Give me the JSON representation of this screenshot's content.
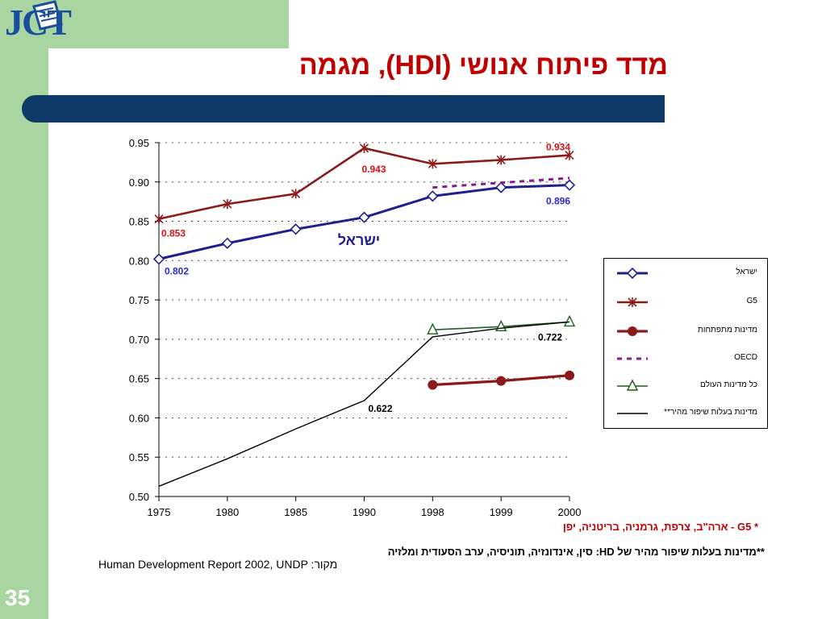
{
  "logo_text": "JCT",
  "slide_title": "מדד פיתוח אנושי (HDI), מגמה",
  "slide_number": "35",
  "footnotes": {
    "g5": "* G5 - ארה\"ב, צרפת, גרמניה, בריטניה, יפן",
    "fast": "**מדינות בעלות שיפור מהיר של HD: סין, אינדונזיה, תוניסיה, ערב הסעודית ומלזיה",
    "source": "Human Development Report 2002, UNDP :מקור"
  },
  "colors": {
    "israel": "#1f1f8f",
    "g5": "#8b1a1a",
    "developing": "#8b1a1a",
    "oecd": "#8b1a8b",
    "world": "#1f5f1f",
    "fast": "#000000",
    "label_red": "#e01010",
    "label_blue": "#2a2adc",
    "background_band": "#a8d5a0",
    "title_bar": "#0d3a66"
  },
  "chart_data": {
    "type": "line",
    "categories": [
      "1975",
      "1980",
      "1985",
      "1990",
      "1998",
      "1999",
      "2000"
    ],
    "ylim": [
      0.5,
      0.95
    ],
    "yticks": [
      "0.50",
      "0.55",
      "0.60",
      "0.65",
      "0.70",
      "0.75",
      "0.80",
      "0.85",
      "0.90",
      "0.95"
    ],
    "grid": true,
    "legend_position": "right",
    "series": [
      {
        "key": "israel",
        "name": "ישראל",
        "values": [
          0.802,
          0.822,
          0.84,
          0.855,
          0.882,
          0.893,
          0.896
        ],
        "marker": "diamond"
      },
      {
        "key": "g5",
        "name": "G5",
        "values": [
          0.853,
          0.872,
          0.885,
          0.943,
          0.923,
          0.928,
          0.934
        ],
        "marker": "x"
      },
      {
        "key": "developing",
        "name": "מדינות מתפתחות",
        "values": [
          null,
          null,
          null,
          null,
          0.642,
          0.647,
          0.654
        ],
        "marker": "circle"
      },
      {
        "key": "oecd",
        "name": "OECD",
        "values": [
          null,
          null,
          null,
          null,
          0.893,
          0.899,
          0.905
        ],
        "marker": "none",
        "dashed": true
      },
      {
        "key": "world",
        "name": "כל מדינות העולם",
        "values": [
          null,
          null,
          null,
          null,
          0.712,
          0.716,
          0.722
        ],
        "marker": "triangle"
      },
      {
        "key": "fast",
        "name": "מדינות בעלות שיפור מהיר**",
        "values": [
          0.513,
          0.548,
          0.586,
          0.622,
          0.703,
          0.714,
          0.722
        ],
        "marker": "none"
      }
    ],
    "annotations": [
      {
        "text": "0.853",
        "series": "g5",
        "index": 0,
        "color": "label_red"
      },
      {
        "text": "0.943",
        "series": "g5",
        "index": 3,
        "color": "label_red"
      },
      {
        "text": "0.934",
        "series": "g5",
        "index": 6,
        "color": "label_red"
      },
      {
        "text": "0.802",
        "series": "israel",
        "index": 0,
        "color": "label_blue"
      },
      {
        "text": "0.896",
        "series": "israel",
        "index": 6,
        "color": "label_blue"
      },
      {
        "text": "0.622",
        "series": "fast",
        "index": 3,
        "color": "fast"
      },
      {
        "text": "0.722",
        "series": "world",
        "index": 6,
        "color": "fast"
      }
    ],
    "inline_label": "ישראל"
  }
}
